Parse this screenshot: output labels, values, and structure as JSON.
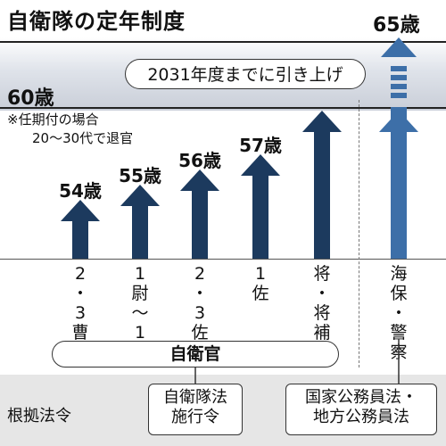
{
  "title": "自衛隊の定年制度",
  "age_60": "60歳",
  "age_65": "65歳",
  "note_line1": "※任期付の場合",
  "note_line2": "20〜30代で退官",
  "callout": "2031年度までに引き上げ",
  "bars": [
    {
      "age_label": "54歳",
      "rank_lines": [
        "2",
        "・",
        "3",
        "曹"
      ]
    },
    {
      "age_label": "55歳",
      "rank_lines": [
        "1",
        "尉",
        "〜",
        "1",
        "曹"
      ]
    },
    {
      "age_label": "56歳",
      "rank_lines": [
        "2",
        "・",
        "3",
        "佐"
      ]
    },
    {
      "age_label": "57歳",
      "rank_lines": [
        "1",
        "佐"
      ]
    },
    {
      "age_label": "",
      "rank_lines": [
        "将",
        "・",
        "将",
        "補"
      ]
    },
    {
      "age_label": "",
      "rank_lines": [
        "海",
        "保",
        "・",
        "警",
        "察"
      ]
    }
  ],
  "group_label": "自衛官",
  "law_label": "根拠法令",
  "law_box1": [
    "自衛隊法",
    "施行令"
  ],
  "law_box2": [
    "国家公務員法・",
    "地方公務員法"
  ],
  "colors": {
    "arrow": "#1c3a5e",
    "arrow_light": "#3d6fa8",
    "band": "#c9ced8",
    "footer": "#e6e6e6"
  }
}
